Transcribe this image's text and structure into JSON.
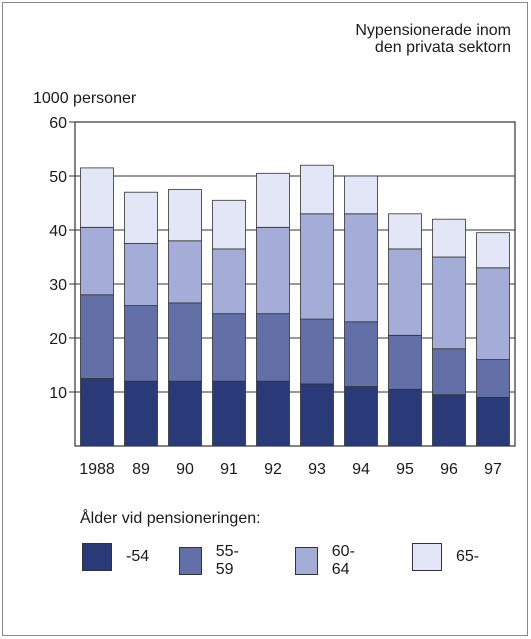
{
  "chart_data": {
    "type": "bar",
    "stacked": true,
    "title": "Nypensionerade inom den privata sektorn",
    "title_lines": [
      "Nypensionerade inom",
      "den privata sektorn"
    ],
    "ylabel": "1000 personer",
    "ylim": [
      0,
      60
    ],
    "yticks": [
      10,
      20,
      30,
      40,
      50,
      60
    ],
    "grid": true,
    "categories": [
      "1988",
      "89",
      "90",
      "91",
      "92",
      "93",
      "94",
      "95",
      "96",
      "97"
    ],
    "series": [
      {
        "name": "-54",
        "color": "#2a3a78",
        "values": [
          12.5,
          12,
          12,
          12,
          12,
          11.5,
          11,
          10.5,
          9.5,
          9
        ]
      },
      {
        "name": "55-59",
        "color": "#6370a8",
        "values": [
          15.5,
          14,
          14.5,
          12.5,
          12.5,
          12,
          12,
          10,
          8.5,
          7
        ]
      },
      {
        "name": "60-64",
        "color": "#a4acd8",
        "values": [
          12.5,
          11.5,
          11.5,
          12,
          16,
          19.5,
          20,
          16,
          17,
          17
        ]
      },
      {
        "name": "65-",
        "color": "#e3e6f7",
        "values": [
          11,
          9.5,
          9.5,
          9,
          10,
          9,
          7,
          6.5,
          7,
          6.5
        ]
      }
    ],
    "legend_title": "Ålder vid pensioneringen:",
    "legend_position": "bottom"
  }
}
